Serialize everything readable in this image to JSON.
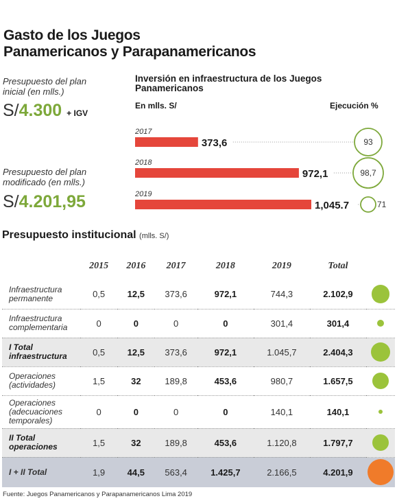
{
  "title_line1": "Gasto de los Juegos",
  "title_line2": "Panamericanos y Parapanamericanos",
  "budget_initial_label": "Presupuesto del plan inicial (en mlls.)",
  "budget_initial_prefix": "S/",
  "budget_initial_value": "4.300",
  "budget_initial_suffix": "+ IGV",
  "budget_modified_label": "Presupuesto del plan modificado (en mlls.)",
  "budget_modified_prefix": "S/",
  "budget_modified_value": "4.201,95",
  "chart_data": [
    {
      "type": "bar",
      "title": "Inversión en infraestructura de los Juegos Panamericanos",
      "unit_label": "En mlls. S/",
      "ratio_label": "Ejecución %",
      "categories": [
        "2017",
        "2018",
        "2019"
      ],
      "values": [
        373.6,
        972.1,
        1045.7
      ],
      "value_labels": [
        "373,6",
        "972,1",
        "1,045.7"
      ],
      "execution_pct": [
        93,
        98.7,
        71
      ],
      "execution_labels": [
        "93",
        "98,7",
        "71"
      ],
      "orientation": "horizontal",
      "bar_color": "#e5463b"
    },
    {
      "type": "table",
      "title": "Presupuesto institucional",
      "unit": "(mlls. S/)",
      "columns": [
        "",
        "2015",
        "2016",
        "2017",
        "2018",
        "2019",
        "Total"
      ],
      "rows": [
        {
          "label": "Infraestructura permanente",
          "values": [
            "0,5",
            "12,5",
            "373,6",
            "972,1",
            "744,3",
            "2.102,9"
          ],
          "total": 2102.9,
          "kind": "row"
        },
        {
          "label": "Infraestructura complementaria",
          "values": [
            "0",
            "0",
            "0",
            "0",
            "301,4",
            "301,4"
          ],
          "total": 301.4,
          "kind": "row"
        },
        {
          "label": "I Total infraestructura",
          "values": [
            "0,5",
            "12,5",
            "373,6",
            "972,1",
            "1.045,7",
            "2.404,3"
          ],
          "total": 2404.3,
          "kind": "tot"
        },
        {
          "label": "Operaciones (actividades)",
          "values": [
            "1,5",
            "32",
            "189,8",
            "453,6",
            "980,7",
            "1.657,5"
          ],
          "total": 1657.5,
          "kind": "row"
        },
        {
          "label": "Operaciones (adecuaciones temporales)",
          "values": [
            "0",
            "0",
            "0",
            "0",
            "140,1",
            "140,1"
          ],
          "total": 140.1,
          "kind": "row"
        },
        {
          "label": "II Total operaciones",
          "values": [
            "1,5",
            "32",
            "189,8",
            "453,6",
            "1.120,8",
            "1.797,7"
          ],
          "total": 1797.7,
          "kind": "tot"
        },
        {
          "label": "I + II Total",
          "values": [
            "1,9",
            "44,5",
            "563,4",
            "1.425,7",
            "2.166,5",
            "4.201,9"
          ],
          "total": 4201.9,
          "kind": "grand"
        }
      ],
      "bold_columns": [
        1,
        3,
        5
      ],
      "dot_color_green": "#9bc33b",
      "dot_color_orange": "#f07b2a"
    }
  ],
  "source": "Fuente: Juegos Panamericanos y Parapanamericanos Lima 2019",
  "colors": {
    "accent_green": "#7da83a",
    "bar_red": "#e5463b"
  }
}
